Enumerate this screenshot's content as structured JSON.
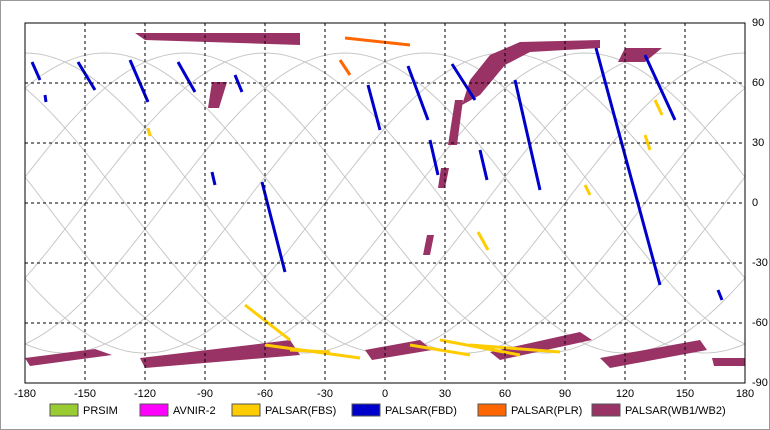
{
  "map": {
    "xlim": [
      -180,
      180
    ],
    "ylim": [
      -90,
      90
    ],
    "xticks": [
      -180,
      -150,
      -120,
      -90,
      -60,
      -30,
      0,
      30,
      60,
      90,
      120,
      150,
      180
    ],
    "yticks": [
      90,
      60,
      30,
      0,
      -30,
      -60,
      -90
    ],
    "grid": true,
    "legend": [
      {
        "name": "PRSIM",
        "color": "#99cc33"
      },
      {
        "name": "AVNIR-2",
        "color": "#ff00ff"
      },
      {
        "name": "PALSAR(FBS)",
        "color": "#ffcc00"
      },
      {
        "name": "PALSAR(FBD)",
        "color": "#0000cc"
      },
      {
        "name": "PALSAR(PLR)",
        "color": "#ff6600"
      },
      {
        "name": "PALSAR(WB1/WB2)",
        "color": "#993366"
      }
    ]
  }
}
